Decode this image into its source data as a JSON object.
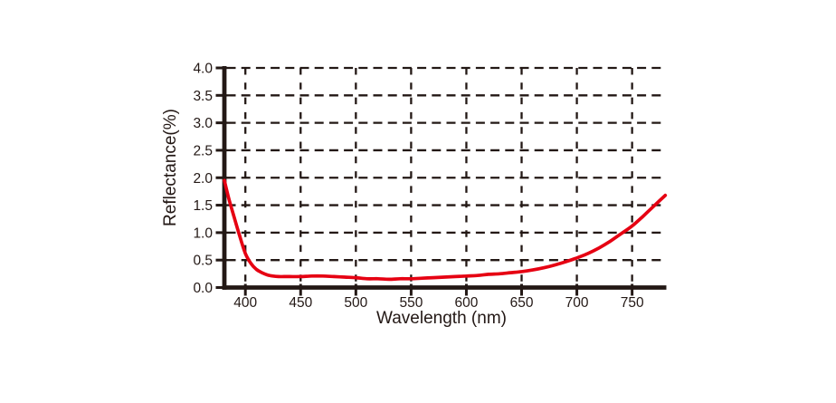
{
  "chart_data": {
    "type": "line",
    "title": "",
    "xlabel": "Wavelength (nm)",
    "ylabel": "Reflectance(%)",
    "xlim": [
      381,
      781
    ],
    "ylim": [
      0,
      4
    ],
    "x_ticks": [
      400,
      450,
      500,
      550,
      600,
      650,
      700,
      750
    ],
    "x_tick_labels": [
      "400",
      "450",
      "500",
      "550",
      "600",
      "650",
      "700",
      "750"
    ],
    "y_ticks": [
      0,
      0.5,
      1,
      1.5,
      2,
      2.5,
      3,
      3.5,
      4
    ],
    "y_tick_labels": [
      "0.0",
      "0.5",
      "1.0",
      "1.5",
      "2.0",
      "2.5",
      "3.0",
      "3.5",
      "4.0"
    ],
    "grid": "dashed-both-directions",
    "legend": "none",
    "colors": {
      "line": "#e60012",
      "ink": "#231815",
      "background": "#ffffff"
    },
    "series": [
      {
        "name": "reflectance",
        "x": [
          381,
          385,
          390,
          395,
          400,
          405,
          410,
          415,
          420,
          425,
          430,
          435,
          440,
          450,
          460,
          470,
          480,
          490,
          500,
          510,
          520,
          530,
          540,
          550,
          560,
          570,
          580,
          590,
          600,
          610,
          620,
          630,
          640,
          650,
          660,
          670,
          680,
          690,
          700,
          710,
          720,
          730,
          740,
          750,
          760,
          770,
          780
        ],
        "y": [
          1.95,
          1.62,
          1.27,
          0.93,
          0.62,
          0.44,
          0.33,
          0.27,
          0.23,
          0.21,
          0.2,
          0.2,
          0.2,
          0.2,
          0.21,
          0.21,
          0.2,
          0.19,
          0.18,
          0.16,
          0.16,
          0.15,
          0.16,
          0.16,
          0.17,
          0.18,
          0.19,
          0.2,
          0.21,
          0.22,
          0.24,
          0.25,
          0.27,
          0.29,
          0.32,
          0.36,
          0.41,
          0.47,
          0.54,
          0.62,
          0.72,
          0.84,
          0.98,
          1.12,
          1.3,
          1.49,
          1.68
        ]
      }
    ]
  }
}
